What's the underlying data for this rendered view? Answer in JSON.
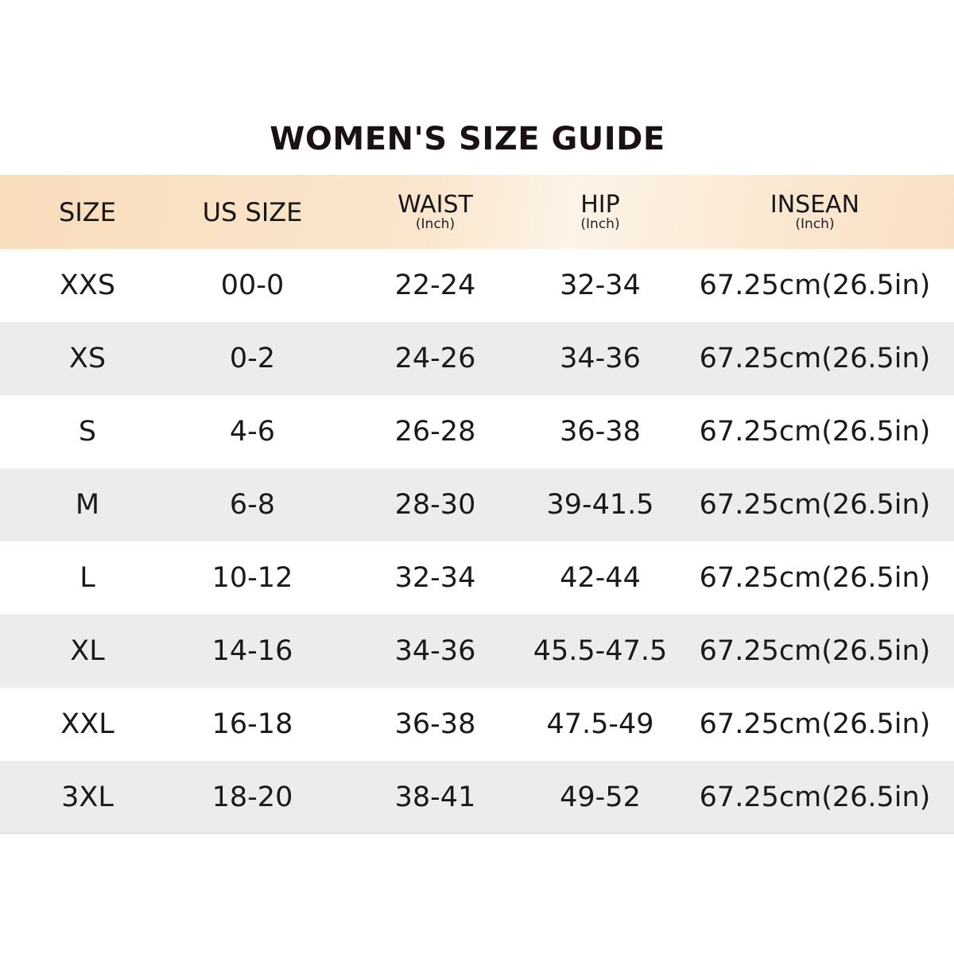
{
  "title": "WOMEN'S SIZE GUIDE",
  "header": {
    "columns": [
      {
        "label": "SIZE",
        "unit": ""
      },
      {
        "label": "US SIZE",
        "unit": ""
      },
      {
        "label": "WAIST",
        "unit": "(Inch)"
      },
      {
        "label": "HIP",
        "unit": "(Inch)"
      },
      {
        "label": "INSEAN",
        "unit": "(Inch)"
      }
    ]
  },
  "rows": [
    [
      "XXS",
      "00-0",
      "22-24",
      "32-34",
      "67.25cm(26.5in)"
    ],
    [
      "XS",
      "0-2",
      "24-26",
      "34-36",
      "67.25cm(26.5in)"
    ],
    [
      "S",
      "4-6",
      "26-28",
      "36-38",
      "67.25cm(26.5in)"
    ],
    [
      "M",
      "6-8",
      "28-30",
      "39-41.5",
      "67.25cm(26.5in)"
    ],
    [
      "L",
      "10-12",
      "32-34",
      "42-44",
      "67.25cm(26.5in)"
    ],
    [
      "XL",
      "14-16",
      "34-36",
      "45.5-47.5",
      "67.25cm(26.5in)"
    ],
    [
      "XXL",
      "16-18",
      "36-38",
      "47.5-49",
      "67.25cm(26.5in)"
    ],
    [
      "3XL",
      "18-20",
      "38-41",
      "49-52",
      "67.25cm(26.5in)"
    ]
  ],
  "colors": {
    "header_bg": "#f8ddbc",
    "alt_row_bg": "#ececec",
    "text": "#1a1a1a"
  }
}
